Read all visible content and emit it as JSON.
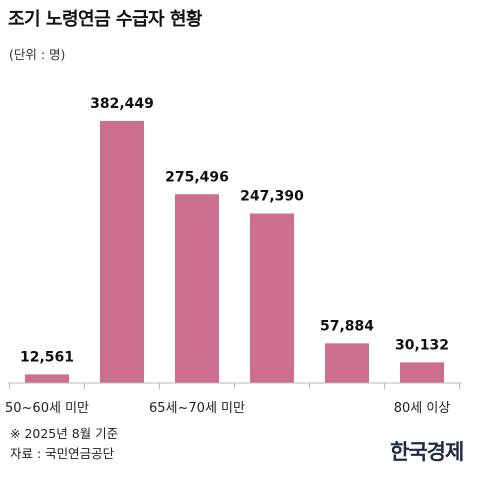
{
  "header": {
    "title": "조기 노령연금 수급자 현황",
    "unit": "(단위 : 명)"
  },
  "chart_data": {
    "type": "bar",
    "title": "조기 노령연금 수급자 현황",
    "unit": "(단위 : 명)",
    "categories": [
      "50~60세 미만",
      "",
      "65세~70세 미만",
      "",
      "",
      "80세 이상"
    ],
    "values": [
      12561,
      382449,
      275496,
      247390,
      57884,
      30132
    ],
    "value_labels": [
      "12,561",
      "382,449",
      "275,496",
      "247,390",
      "57,884",
      "30,132"
    ],
    "tick_labels": [
      "50~60세 미만",
      "65세~70세 미만",
      "80세 이상"
    ],
    "tick_label_categories": [
      0,
      2,
      5
    ],
    "ylim": [
      0,
      382449
    ],
    "grid": false,
    "bar_color": "#cc6e8f"
  },
  "footer": {
    "note": "※ 2025년 8월 기준",
    "source": "자료 : 국민연금공단",
    "logo": "한국경제"
  }
}
